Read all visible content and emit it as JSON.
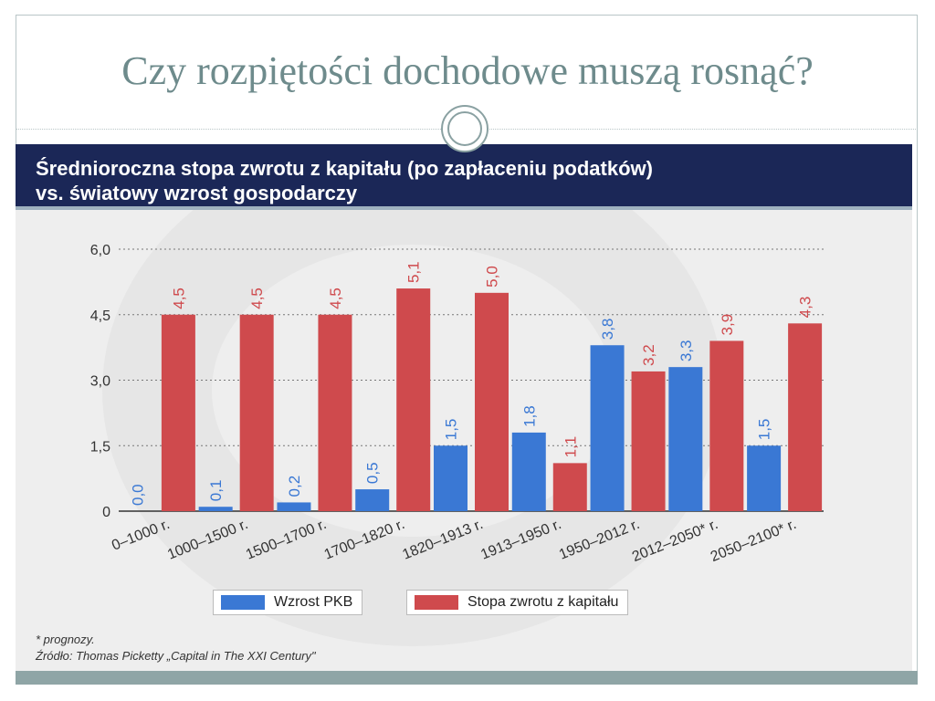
{
  "slide": {
    "title": "Czy rozpiętości dochodowe muszą rosnąć?"
  },
  "infographic": {
    "header_line1": "Średnioroczna stopa zwrotu z kapitału (po zapłaceniu podatków)",
    "header_line2": "vs. światowy wzrost gospodarczy",
    "footnote1": "* prognozy.",
    "footnote2": "Źródło: Thomas Picketty „Capital in The XXI Century\""
  },
  "chart_data": {
    "type": "bar",
    "title": "Średnioroczna stopa zwrotu z kapitału (po zapłaceniu podatków) vs. światowy wzrost gospodarczy",
    "categories": [
      "0–1000 r.",
      "1000–1500 r.",
      "1500–1700 r.",
      "1700–1820 r.",
      "1820–1913 r.",
      "1913–1950 r.",
      "1950–2012 r.",
      "2012–2050* r.",
      "2050–2100* r."
    ],
    "series": [
      {
        "name": "Wzrost PKB",
        "color": "#3a78d4",
        "values": [
          0.0,
          0.1,
          0.2,
          0.5,
          1.5,
          1.8,
          3.8,
          3.3,
          1.5
        ],
        "labels": [
          "0,0",
          "0,1",
          "0,2",
          "0,5",
          "1,5",
          "1,8",
          "3,8",
          "3,3",
          "1,5"
        ]
      },
      {
        "name": "Stopa zwrotu z kapitału",
        "color": "#cf4a4d",
        "values": [
          4.5,
          4.5,
          4.5,
          5.1,
          5.0,
          1.1,
          3.2,
          3.9,
          4.3
        ],
        "labels": [
          "4,5",
          "4,5",
          "4,5",
          "5,1",
          "5,0",
          "1,1",
          "3,2",
          "3,9",
          "4,3"
        ]
      }
    ],
    "yticks": [
      0,
      1.5,
      3.0,
      4.5,
      6.0
    ],
    "ytick_labels": [
      "0",
      "1,5",
      "3,0",
      "4,5",
      "6,0"
    ],
    "ylim": [
      0,
      6.0
    ],
    "xlabel": "",
    "ylabel": "",
    "grid": true,
    "legend_position": "bottom"
  }
}
